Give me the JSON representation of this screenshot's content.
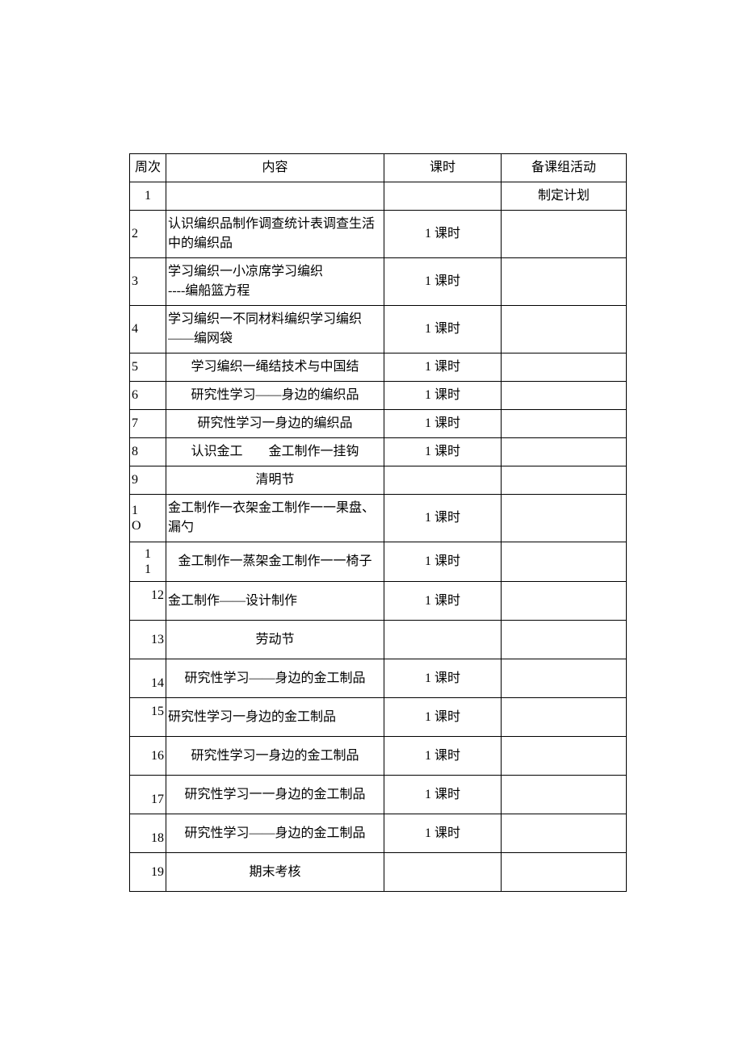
{
  "table": {
    "columns": {
      "week": "周次",
      "content": "内容",
      "hours": "课时",
      "activity": "备课组活动"
    },
    "rows": [
      {
        "week": "1",
        "content": "",
        "hours": "",
        "activity": "制定计划",
        "contentAlign": "center",
        "weekAlign": "center",
        "height": "short"
      },
      {
        "week": "2",
        "content": "认识编织品制作调查统计表调查生活中的编织品",
        "hours": "1 课时",
        "activity": "",
        "contentAlign": "left",
        "weekAlign": "left",
        "height": "tall"
      },
      {
        "week": "3",
        "content": "学习编织一小凉席学习编织\n----编船篮方程",
        "hours": "1 课时",
        "activity": "",
        "contentAlign": "left",
        "weekAlign": "left",
        "height": "tall"
      },
      {
        "week": "4",
        "content": "学习编织一不同材料编织学习编织——编网袋",
        "hours": "1 课时",
        "activity": "",
        "contentAlign": "left",
        "weekAlign": "left",
        "height": "tall"
      },
      {
        "week": "5",
        "content": "学习编织一绳结技术与中国结",
        "hours": "1 课时",
        "activity": "",
        "contentAlign": "center",
        "weekAlign": "left",
        "height": "short"
      },
      {
        "week": "6",
        "content": "研究性学习——身边的编织品",
        "hours": "1 课时",
        "activity": "",
        "contentAlign": "center",
        "weekAlign": "left",
        "height": "short"
      },
      {
        "week": "7",
        "content": "研究性学习一身边的编织品",
        "hours": "1 课时",
        "activity": "",
        "contentAlign": "center",
        "weekAlign": "left",
        "height": "short"
      },
      {
        "week": "8",
        "content": "认识金工　　金工制作一挂钩",
        "hours": "1 课时",
        "activity": "",
        "contentAlign": "center",
        "weekAlign": "left",
        "height": "short"
      },
      {
        "week": "9",
        "content": "清明节",
        "hours": "",
        "activity": "",
        "contentAlign": "center",
        "weekAlign": "left",
        "height": "short"
      },
      {
        "week": "1O",
        "content": "金工制作一衣架金工制作一一果盘、漏勺",
        "hours": "1 课时",
        "activity": "",
        "contentAlign": "left",
        "weekAlign": "left",
        "height": "tall",
        "weekBreak": true
      },
      {
        "week": "11",
        "content": "金工制作一蒸架金工制作一一椅子",
        "hours": "1 课时",
        "activity": "",
        "contentAlign": "center",
        "weekAlign": "center",
        "height": "tall",
        "weekBreak": true
      },
      {
        "week": "12",
        "content": "金工制作——设计制作",
        "hours": "1 课时",
        "activity": "",
        "contentAlign": "left",
        "weekAlign": "right",
        "height": "tall",
        "weekTop": true
      },
      {
        "week": "13",
        "content": "劳动节",
        "hours": "",
        "activity": "",
        "contentAlign": "center",
        "weekAlign": "right",
        "height": "tall"
      },
      {
        "week": "14",
        "content": "研究性学习——身边的金工制品",
        "hours": "1 课时",
        "activity": "",
        "contentAlign": "center",
        "weekAlign": "right",
        "height": "tall",
        "weekBottom": true
      },
      {
        "week": "15",
        "content": "研究性学习一身边的金工制品",
        "hours": "1 课时",
        "activity": "",
        "contentAlign": "left",
        "weekAlign": "right",
        "height": "tall",
        "weekTop": true
      },
      {
        "week": "16",
        "content": "研究性学习一身边的金工制品",
        "hours": "1 课时",
        "activity": "",
        "contentAlign": "center",
        "weekAlign": "right",
        "height": "tall"
      },
      {
        "week": "17",
        "content": "研究性学习一一身边的金工制品",
        "hours": "1 课时",
        "activity": "",
        "contentAlign": "center",
        "weekAlign": "right",
        "height": "tall",
        "weekBottom": true
      },
      {
        "week": "18",
        "content": "研究性学习——身边的金工制品",
        "hours": "1 课时",
        "activity": "",
        "contentAlign": "center",
        "weekAlign": "right",
        "height": "tall",
        "weekBottom": true
      },
      {
        "week": "19",
        "content": "期末考核",
        "hours": "",
        "activity": "",
        "contentAlign": "center",
        "weekAlign": "right",
        "height": "tall"
      }
    ]
  }
}
